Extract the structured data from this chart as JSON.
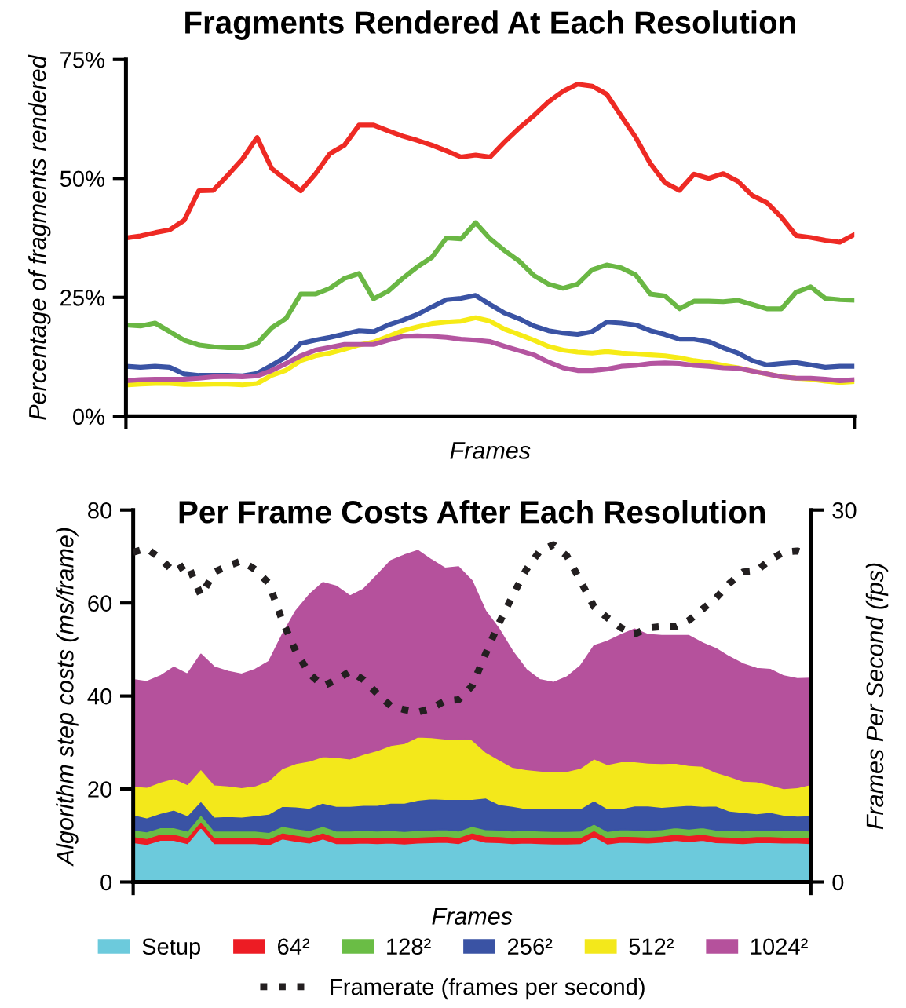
{
  "chart_data": [
    {
      "type": "line",
      "title": "Fragments Rendered At Each Resolution",
      "xlabel": "Frames",
      "ylabel": "Percentage of fragments rendered",
      "categories": [
        null,
        null,
        null,
        null,
        null,
        null,
        null,
        null,
        null,
        null,
        null,
        null,
        null,
        null,
        null,
        null,
        null,
        null,
        null,
        null,
        null,
        null,
        null,
        null,
        null,
        null,
        null,
        null,
        null,
        null,
        null,
        null,
        null,
        null,
        null,
        null,
        null,
        null,
        null,
        null,
        null,
        null,
        null,
        null,
        null,
        null,
        null,
        null,
        null,
        null,
        null
      ],
      "ylim": [
        0,
        75
      ],
      "yticks": [
        {
          "value": 0,
          "label": "0%"
        },
        {
          "value": 25,
          "label": "25%"
        },
        {
          "value": 50,
          "label": "50%"
        },
        {
          "value": 75,
          "label": "75%"
        }
      ],
      "grid": false,
      "legend": false,
      "line_style": "solid",
      "marker": "none",
      "series": [
        {
          "color": "#ee2a24",
          "values": [
            37.5,
            37.9,
            38.6,
            39.2,
            41.2,
            47.4,
            47.5,
            50.7,
            54.1,
            58.6,
            52.1,
            49.7,
            47.4,
            50.9,
            55.2,
            57.0,
            61.2,
            61.2,
            60.0,
            58.9,
            58.0,
            57.0,
            55.8,
            54.5,
            54.9,
            54.5,
            57.7,
            60.6,
            63.2,
            66.1,
            68.3,
            69.8,
            69.4,
            67.7,
            63.1,
            58.6,
            53.1,
            49.1,
            47.5,
            50.9,
            50.0,
            51.0,
            49.4,
            46.4,
            44.9,
            41.8,
            38.0,
            37.6,
            37.0,
            36.6,
            38.2
          ]
        },
        {
          "color": "#6ab744",
          "values": [
            19.2,
            19.0,
            19.6,
            17.8,
            16.0,
            15.0,
            14.6,
            14.4,
            14.4,
            15.3,
            18.6,
            20.6,
            25.7,
            25.7,
            26.9,
            29.0,
            30.0,
            24.7,
            26.3,
            29.0,
            31.4,
            33.4,
            37.5,
            37.3,
            40.7,
            37.3,
            34.8,
            32.6,
            29.6,
            27.8,
            26.9,
            27.8,
            30.8,
            31.8,
            31.2,
            29.7,
            25.7,
            25.3,
            22.6,
            24.2,
            24.2,
            24.1,
            24.4,
            23.5,
            22.6,
            22.6,
            26.1,
            27.2,
            24.8,
            24.5,
            24.4
          ]
        },
        {
          "color": "#3a53a4",
          "values": [
            10.5,
            10.3,
            10.5,
            10.3,
            8.9,
            8.6,
            8.6,
            8.6,
            8.5,
            9.0,
            10.7,
            12.5,
            15.3,
            16.0,
            16.6,
            17.3,
            18.0,
            17.8,
            19.2,
            20.2,
            21.4,
            23.0,
            24.5,
            24.8,
            25.4,
            23.5,
            21.7,
            20.5,
            19.0,
            18.0,
            17.5,
            17.2,
            17.8,
            19.8,
            19.6,
            19.2,
            18.0,
            17.2,
            16.2,
            16.2,
            15.7,
            14.4,
            13.3,
            11.7,
            10.8,
            11.1,
            11.3,
            10.8,
            10.3,
            10.5,
            10.5
          ]
        },
        {
          "color": "#f6eb16",
          "values": [
            6.6,
            6.8,
            6.9,
            6.9,
            6.7,
            6.7,
            6.8,
            6.8,
            6.6,
            6.9,
            8.6,
            9.7,
            11.7,
            12.7,
            13.3,
            14.1,
            15.0,
            15.6,
            16.8,
            18.0,
            18.8,
            19.5,
            19.8,
            20.0,
            20.7,
            20.0,
            18.3,
            17.2,
            16.0,
            14.7,
            13.9,
            13.5,
            13.3,
            13.6,
            13.3,
            13.1,
            12.9,
            12.7,
            12.3,
            11.7,
            11.3,
            10.7,
            10.2,
            9.5,
            8.9,
            8.3,
            8.0,
            7.8,
            7.4,
            7.1,
            7.3
          ]
        },
        {
          "color": "#b455a0",
          "values": [
            7.5,
            7.7,
            7.8,
            7.8,
            7.8,
            8.0,
            8.3,
            8.4,
            8.3,
            8.5,
            9.6,
            11.1,
            12.7,
            13.9,
            14.5,
            15.1,
            15.1,
            15.1,
            16.0,
            16.8,
            16.9,
            16.8,
            16.6,
            16.2,
            16.0,
            15.7,
            14.7,
            13.8,
            12.9,
            11.4,
            10.2,
            9.6,
            9.6,
            9.9,
            10.5,
            10.7,
            11.1,
            11.2,
            11.1,
            10.7,
            10.5,
            10.2,
            10.1,
            9.5,
            8.9,
            8.3,
            8.0,
            8.0,
            7.8,
            7.5,
            7.7
          ]
        }
      ]
    },
    {
      "type": "area",
      "stacked": true,
      "title": "Per Frame Costs After Each Resolution",
      "xlabel": "Frames",
      "ylabel": "Algorithm step costs (ms/frame)",
      "y2label": "Frames Per Second (fps)",
      "categories": [
        null,
        null,
        null,
        null,
        null,
        null,
        null,
        null,
        null,
        null,
        null,
        null,
        null,
        null,
        null,
        null,
        null,
        null,
        null,
        null,
        null,
        null,
        null,
        null,
        null,
        null,
        null,
        null,
        null,
        null,
        null,
        null,
        null,
        null,
        null,
        null,
        null,
        null,
        null,
        null,
        null,
        null,
        null,
        null,
        null,
        null,
        null,
        null,
        null,
        null,
        null
      ],
      "ylim": [
        0,
        80
      ],
      "yticks": [
        0,
        20,
        40,
        60,
        80
      ],
      "y2lim": [
        0,
        30
      ],
      "y2ticks": [
        0,
        30
      ],
      "grid": false,
      "legend": "bottom",
      "series": [
        {
          "name": "Setup",
          "color": "#6ccadc",
          "values": [
            8.5,
            8.1,
            9.0,
            9.0,
            8.3,
            11.8,
            8.3,
            8.3,
            8.3,
            8.3,
            8.0,
            9.3,
            8.8,
            8.4,
            9.3,
            8.3,
            8.3,
            8.4,
            8.3,
            8.4,
            8.2,
            8.4,
            8.5,
            8.6,
            8.3,
            9.3,
            8.6,
            8.5,
            8.3,
            8.4,
            8.3,
            8.2,
            8.2,
            8.3,
            9.8,
            8.2,
            8.6,
            8.5,
            8.4,
            8.6,
            9.0,
            8.7,
            9.0,
            8.5,
            8.4,
            8.3,
            8.5,
            8.5,
            8.4,
            8.4,
            8.3
          ]
        },
        {
          "name": "64²",
          "color": "#ed1c24",
          "values": [
            1.3,
            1.3,
            1.3,
            1.3,
            1.3,
            1.3,
            1.3,
            1.3,
            1.3,
            1.3,
            1.3,
            1.3,
            1.3,
            1.3,
            1.3,
            1.3,
            1.3,
            1.3,
            1.3,
            1.3,
            1.3,
            1.3,
            1.3,
            1.3,
            1.3,
            1.3,
            1.3,
            1.3,
            1.3,
            1.3,
            1.3,
            1.3,
            1.3,
            1.3,
            1.3,
            1.3,
            1.3,
            1.3,
            1.3,
            1.3,
            1.3,
            1.3,
            1.3,
            1.3,
            1.3,
            1.3,
            1.3,
            1.3,
            1.3,
            1.3,
            1.3
          ]
        },
        {
          "name": "128²",
          "color": "#6abd45",
          "values": [
            1.4,
            1.4,
            1.4,
            1.4,
            1.4,
            1.4,
            1.4,
            1.4,
            1.4,
            1.4,
            1.4,
            1.4,
            1.4,
            1.4,
            1.4,
            1.4,
            1.4,
            1.4,
            1.4,
            1.4,
            1.4,
            1.4,
            1.4,
            1.4,
            1.4,
            1.4,
            1.4,
            1.4,
            1.4,
            1.4,
            1.4,
            1.4,
            1.4,
            1.4,
            1.4,
            1.4,
            1.4,
            1.4,
            1.4,
            1.4,
            1.4,
            1.4,
            1.4,
            1.4,
            1.4,
            1.4,
            1.4,
            1.4,
            1.4,
            1.4,
            1.4
          ]
        },
        {
          "name": "256²",
          "color": "#3a53a4",
          "values": [
            3.3,
            3.0,
            3.1,
            3.8,
            3.3,
            2.9,
            3.0,
            3.1,
            3.0,
            3.3,
            3.9,
            4.3,
            4.7,
            4.8,
            5.0,
            5.3,
            5.3,
            5.4,
            5.5,
            5.9,
            6.1,
            6.5,
            6.7,
            6.5,
            6.8,
            5.8,
            6.8,
            5.5,
            5.3,
            4.7,
            4.8,
            4.9,
            4.9,
            4.8,
            5.0,
            4.9,
            4.5,
            5.2,
            5.3,
            4.8,
            4.6,
            5.1,
            4.6,
            5.2,
            4.2,
            4.0,
            3.5,
            3.8,
            3.3,
            3.1,
            3.3
          ]
        },
        {
          "name": "512²",
          "color": "#f3e81b",
          "values": [
            6.1,
            6.6,
            6.7,
            6.8,
            6.7,
            6.9,
            6.9,
            6.6,
            6.3,
            6.4,
            7.2,
            8.1,
            9.3,
            10.1,
            10.0,
            10.5,
            10.2,
            11.0,
            11.8,
            12.4,
            12.8,
            13.6,
            13.2,
            13.0,
            13.0,
            12.8,
            9.9,
            9.6,
            8.4,
            8.4,
            8.1,
            7.9,
            8.0,
            8.7,
            9.0,
            9.5,
            10.1,
            9.5,
            9.2,
            9.4,
            9.3,
            8.6,
            8.6,
            7.2,
            7.4,
            6.7,
            6.9,
            5.9,
            5.7,
            6.1,
            6.7
          ]
        },
        {
          "name": "1024²",
          "color": "#b5519c",
          "values": [
            22.9,
            22.7,
            22.8,
            23.9,
            23.7,
            24.7,
            25.3,
            24.6,
            24.4,
            25.0,
            25.6,
            28.8,
            32.8,
            35.8,
            37.4,
            36.8,
            35.0,
            35.5,
            37.7,
            39.7,
            40.5,
            40.1,
            38.2,
            36.7,
            37.0,
            34.2,
            30.3,
            28.1,
            24.9,
            21.5,
            19.6,
            19.2,
            20.3,
            22.0,
            24.3,
            26.5,
            27.3,
            28.5,
            27.6,
            27.5,
            27.4,
            27.9,
            26.5,
            26.6,
            25.7,
            25.2,
            24.3,
            24.8,
            24.2,
            23.4,
            22.8
          ]
        },
        {
          "name": "Framerate (frames per second)",
          "type": "line",
          "axis": "y2",
          "line_style": "dotted",
          "color": "#231f20",
          "values": [
            26.6,
            26.9,
            26.1,
            25.0,
            25.7,
            23.1,
            25.0,
            25.5,
            25.9,
            25.2,
            24.1,
            21.1,
            18.6,
            16.8,
            15.8,
            16.3,
            17.0,
            16.3,
            15.2,
            14.2,
            13.9,
            13.7,
            14.0,
            14.6,
            14.7,
            15.8,
            18.4,
            20.9,
            23.1,
            25.2,
            26.7,
            27.2,
            26.3,
            24.3,
            22.2,
            21.3,
            20.5,
            20.0,
            20.5,
            20.6,
            20.6,
            21.1,
            22.0,
            22.9,
            24.1,
            25.0,
            25.1,
            26.0,
            26.6,
            26.7,
            26.4
          ]
        }
      ]
    }
  ]
}
